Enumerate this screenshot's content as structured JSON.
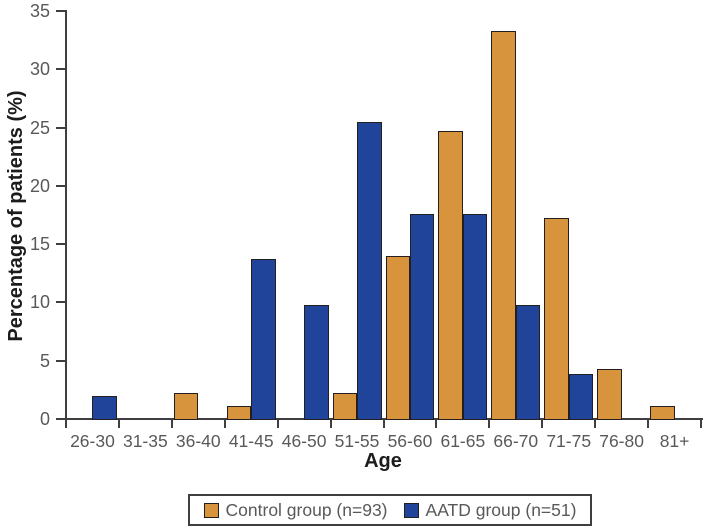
{
  "figure": {
    "background": "#FFFFFF"
  },
  "chart_data": {
    "type": "bar",
    "title": "",
    "xlabel": "Age",
    "ylabel": "Percentage of patients (%)",
    "categories": [
      "26-30",
      "31-35",
      "36-40",
      "41-45",
      "46-50",
      "51-55",
      "56-60",
      "61-65",
      "66-70",
      "71-75",
      "76-80",
      "81+"
    ],
    "series": [
      {
        "name": "Control group (n=93)",
        "color": "#D7943C",
        "values": [
          0,
          0,
          2.2,
          1.1,
          0,
          2.2,
          14.0,
          24.7,
          33.3,
          17.2,
          4.3,
          1.1
        ]
      },
      {
        "name": "AATD group (n=51)",
        "color": "#1F4499",
        "values": [
          2.0,
          0,
          0,
          13.7,
          9.8,
          25.5,
          17.6,
          17.6,
          9.8,
          3.9,
          0,
          0
        ]
      }
    ],
    "ylim": [
      0,
      35
    ],
    "yticks": [
      0,
      5,
      10,
      15,
      20,
      25,
      30,
      35
    ],
    "grid": false,
    "legend_position": "bottom"
  },
  "style_colors": {
    "axis": "#3F3F41",
    "tick_text": "#58595B",
    "title_text": "#1C1C1C",
    "bar_border": "#231F20",
    "legend_border": "#3E3E40"
  }
}
